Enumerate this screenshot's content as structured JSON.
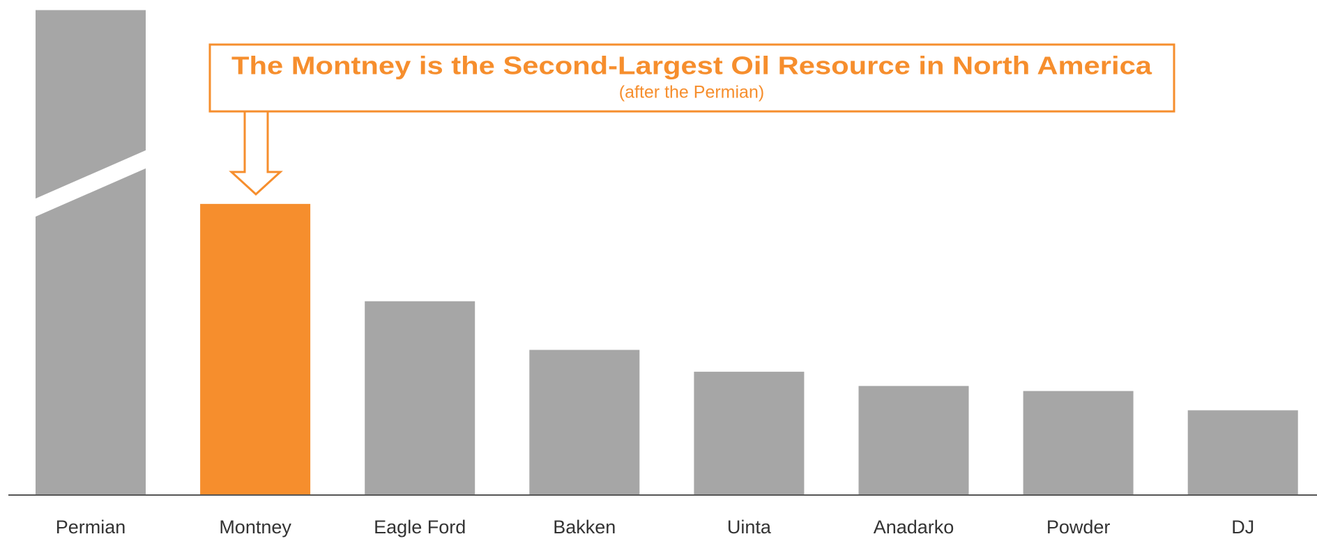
{
  "chart_data": {
    "type": "bar",
    "annotation": {
      "title": "The Montney is the Second-Largest Oil Resource in North America",
      "subtitle": "(after the Permian)"
    },
    "categories": [
      "Permian",
      "Montney",
      "Eagle Ford",
      "Bakken",
      "Uinta",
      "Anadarko",
      "Powder",
      "DJ"
    ],
    "values": [
      578,
      347,
      231,
      173,
      147,
      130,
      124,
      101
    ],
    "colors": [
      "#a6a6a6",
      "#f68e2d",
      "#a6a6a6",
      "#a6a6a6",
      "#a6a6a6",
      "#a6a6a6",
      "#a6a6a6",
      "#a6a6a6"
    ],
    "axis_break": [
      0
    ],
    "ylim": [
      0,
      600
    ]
  }
}
